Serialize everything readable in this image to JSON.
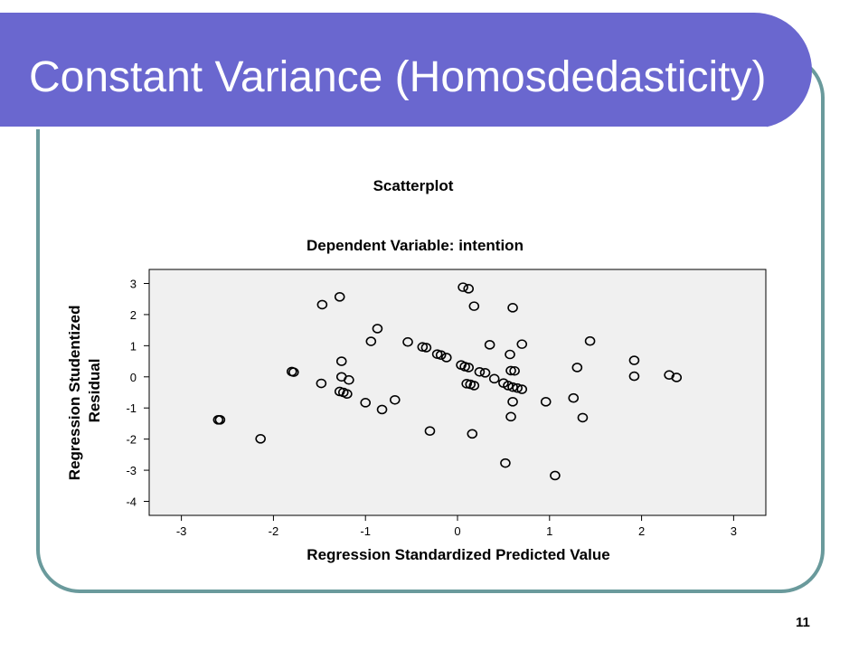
{
  "slide": {
    "title": "Constant Variance (Homosdedasticity)",
    "page_number": "11"
  },
  "colors": {
    "title_bar": "#6a67cf",
    "frame_border": "#6a9a9c",
    "plot_background": "#f0f0f0"
  },
  "chart_data": {
    "type": "scatter",
    "title": "Scatterplot",
    "subtitle": "Dependent Variable: intention",
    "xlabel": "Regression Standardized Predicted Value",
    "ylabel_lines": [
      "Regression Studentized",
      "Residual"
    ],
    "xlim": [
      -3.35,
      3.35
    ],
    "ylim": [
      -4.45,
      3.45
    ],
    "xticks": [
      -3,
      -2,
      -1,
      0,
      1,
      2,
      3
    ],
    "yticks": [
      -4,
      -3,
      -2,
      -1,
      0,
      1,
      2,
      3
    ],
    "grid": false,
    "points": [
      [
        -2.6,
        -1.38
      ],
      [
        -2.58,
        -1.38
      ],
      [
        -2.14,
        -1.99
      ],
      [
        -1.8,
        0.17
      ],
      [
        -1.78,
        0.15
      ],
      [
        -1.47,
        2.32
      ],
      [
        -1.48,
        -0.21
      ],
      [
        -1.28,
        2.57
      ],
      [
        -1.26,
        0.5
      ],
      [
        -1.26,
        0.0
      ],
      [
        -1.28,
        -0.47
      ],
      [
        -1.24,
        -0.5
      ],
      [
        -1.2,
        -0.55
      ],
      [
        -1.18,
        -0.1
      ],
      [
        -0.94,
        1.14
      ],
      [
        -0.87,
        1.55
      ],
      [
        -1.0,
        -0.83
      ],
      [
        -0.82,
        -1.05
      ],
      [
        -0.68,
        -0.74
      ],
      [
        -0.54,
        1.12
      ],
      [
        -0.38,
        0.96
      ],
      [
        -0.34,
        0.94
      ],
      [
        -0.3,
        -1.74
      ],
      [
        -0.22,
        0.73
      ],
      [
        -0.18,
        0.7
      ],
      [
        -0.12,
        0.62
      ],
      [
        0.06,
        2.88
      ],
      [
        0.12,
        2.83
      ],
      [
        0.18,
        2.27
      ],
      [
        0.04,
        0.38
      ],
      [
        0.08,
        0.33
      ],
      [
        0.12,
        0.3
      ],
      [
        0.24,
        0.16
      ],
      [
        0.3,
        0.13
      ],
      [
        0.4,
        -0.06
      ],
      [
        0.1,
        -0.22
      ],
      [
        0.14,
        -0.24
      ],
      [
        0.18,
        -0.28
      ],
      [
        0.16,
        -1.83
      ],
      [
        0.35,
        1.03
      ],
      [
        0.5,
        -0.2
      ],
      [
        0.55,
        -0.28
      ],
      [
        0.6,
        -0.33
      ],
      [
        0.65,
        -0.36
      ],
      [
        0.7,
        -0.4
      ],
      [
        0.52,
        -2.77
      ],
      [
        0.57,
        0.72
      ],
      [
        0.58,
        0.2
      ],
      [
        0.62,
        0.19
      ],
      [
        0.6,
        2.22
      ],
      [
        0.6,
        -0.8
      ],
      [
        0.58,
        -1.28
      ],
      [
        0.7,
        1.05
      ],
      [
        0.96,
        -0.8
      ],
      [
        1.06,
        -3.17
      ],
      [
        1.26,
        -0.68
      ],
      [
        1.3,
        0.3
      ],
      [
        1.36,
        -1.31
      ],
      [
        1.44,
        1.15
      ],
      [
        1.92,
        0.53
      ],
      [
        1.92,
        0.02
      ],
      [
        2.3,
        0.06
      ],
      [
        2.38,
        -0.02
      ]
    ]
  }
}
